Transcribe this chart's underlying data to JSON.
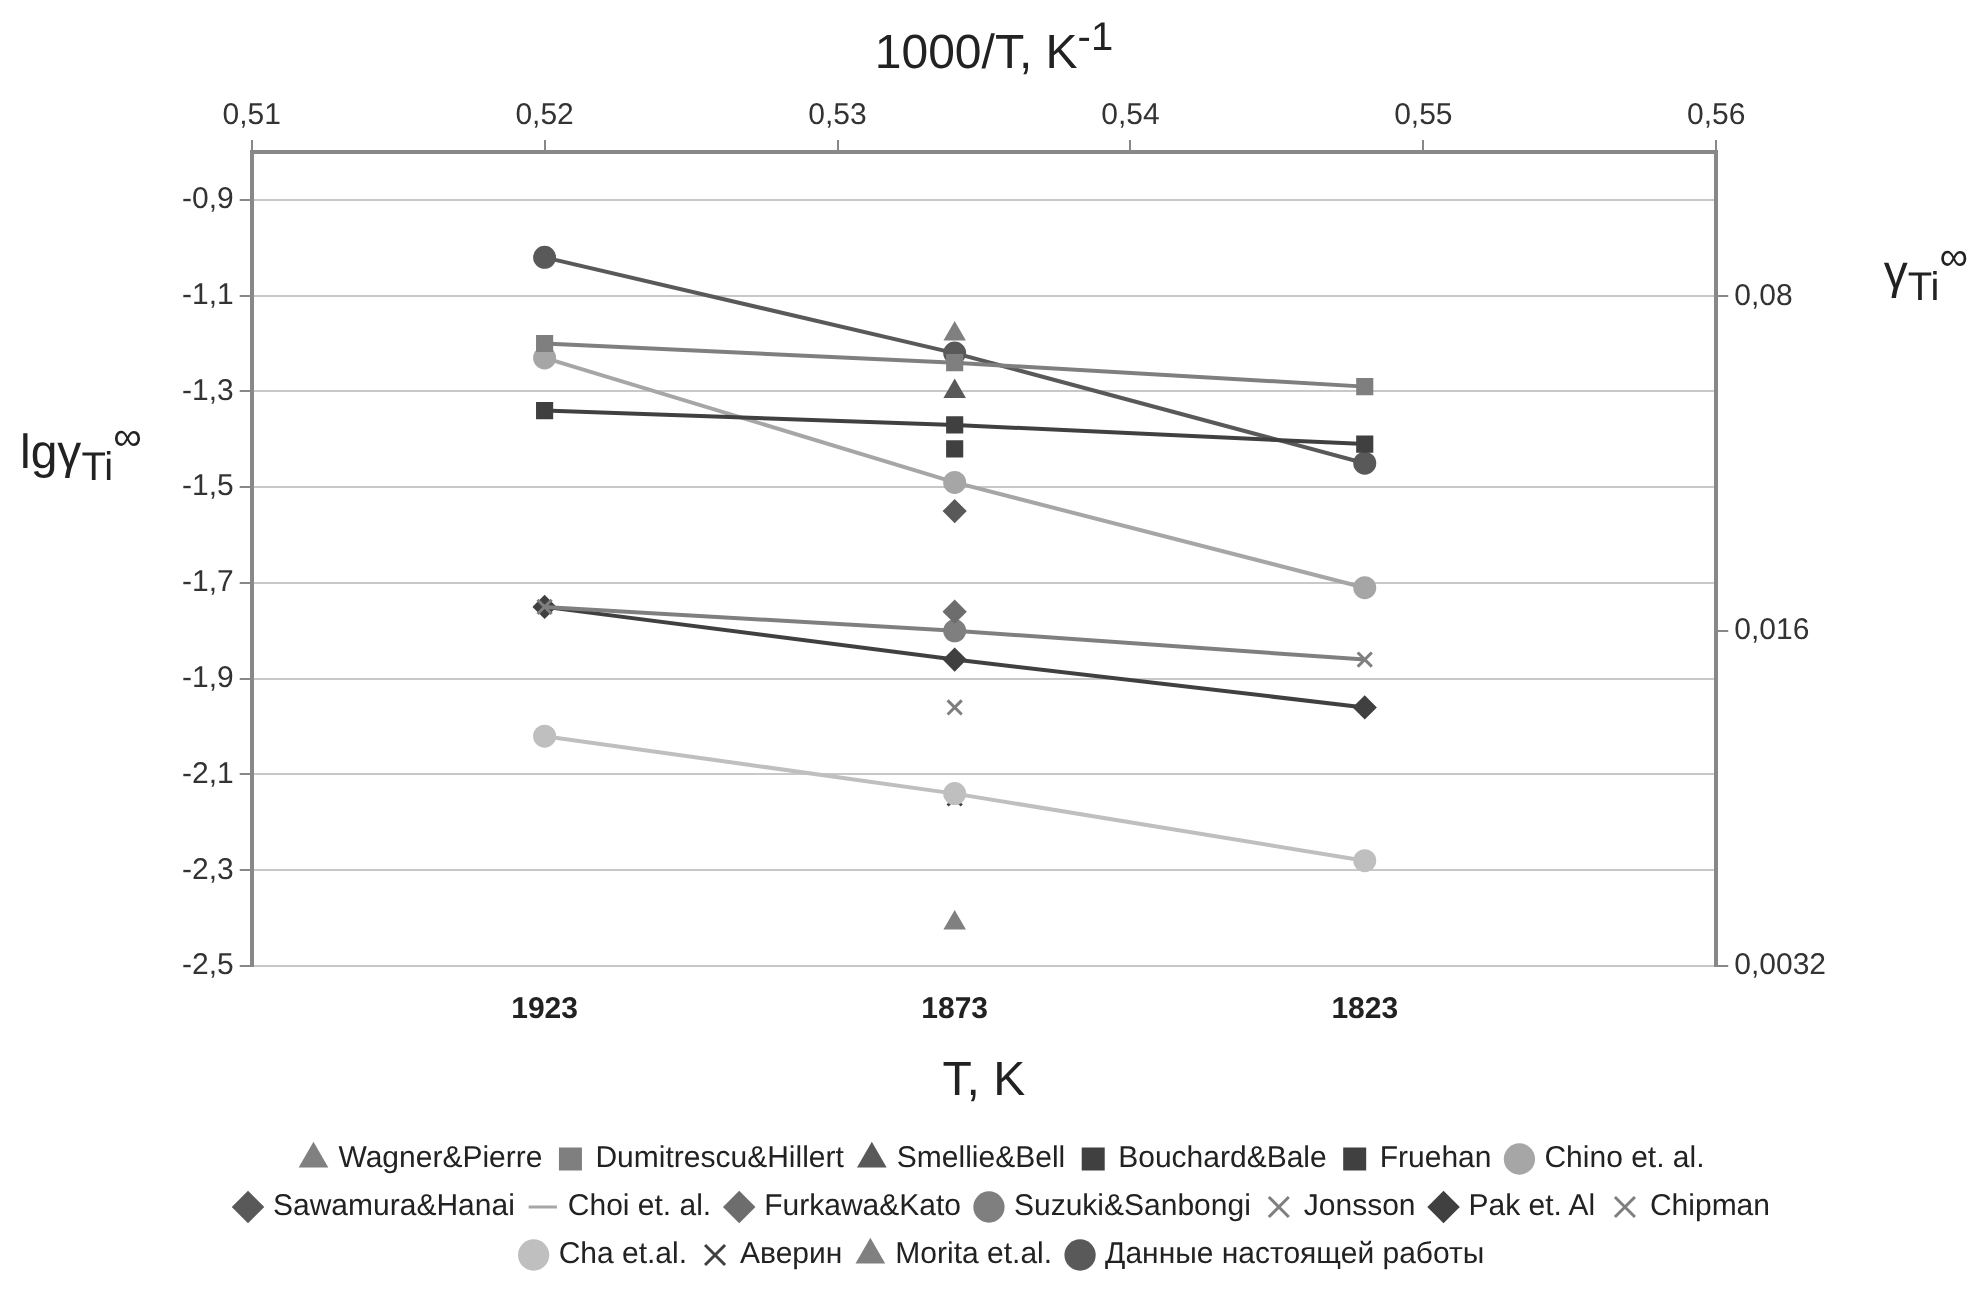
{
  "chart_data": {
    "type": "line",
    "xlabel": "1000/T, K$^{-1}$",
    "ylabel": "lgγ$_{Ti}$$^{∞}$",
    "y2label": "γ$_{Ti}$$^{∞}$",
    "annotations": [
      "1923",
      "1873",
      "1823",
      "T, K"
    ],
    "x": [
      0.52,
      0.534,
      0.548
    ],
    "xlim": [
      0.51,
      0.56
    ],
    "xticks": [
      {
        "value": 0.51,
        "label": "0,51"
      },
      {
        "value": 0.52,
        "label": "0,52"
      },
      {
        "value": 0.53,
        "label": "0,53"
      },
      {
        "value": 0.54,
        "label": "0,54"
      },
      {
        "value": 0.55,
        "label": "0,55"
      },
      {
        "value": 0.56,
        "label": "0,56"
      }
    ],
    "ylim": [
      -2.5,
      -0.8
    ],
    "yticks": [
      {
        "value": -2.5,
        "label": "-2,5"
      },
      {
        "value": -2.3,
        "label": "-2,3"
      },
      {
        "value": -2.1,
        "label": "-2,1"
      },
      {
        "value": -1.9,
        "label": "-1,9"
      },
      {
        "value": -1.7,
        "label": "-1,7"
      },
      {
        "value": -1.5,
        "label": "-1,5"
      },
      {
        "value": -1.3,
        "label": "-1,3"
      },
      {
        "value": -1.1,
        "label": "-1,1"
      },
      {
        "value": -0.9,
        "label": "-0,9"
      }
    ],
    "y2lim": [
      0.0032,
      0.16
    ],
    "y2ticks": [
      {
        "value": 0.0032,
        "label": "0,0032"
      },
      {
        "value": 0.016,
        "label": "0,016"
      },
      {
        "value": 0.08,
        "label": "0,08"
      }
    ],
    "log": "y2",
    "grid": "y",
    "legend": "bottom",
    "series": [
      {
        "name": "Wagner&Pierre",
        "color": "#808080",
        "marker": "triangle",
        "values": [
          null,
          -1.18,
          null
        ]
      },
      {
        "name": "Dumitrescu&Hillert",
        "color": "#7f7f7f",
        "marker": "square",
        "values": [
          -1.2,
          -1.24,
          -1.29
        ]
      },
      {
        "name": "Smellie&Bell",
        "color": "#595959",
        "marker": "triangle",
        "values": [
          null,
          -1.3,
          null
        ]
      },
      {
        "name": "Bouchard&Bale",
        "color": "#404040",
        "marker": "square",
        "values": [
          -1.34,
          -1.37,
          -1.41
        ]
      },
      {
        "name": "Fruehan",
        "color": "#404040",
        "marker": "square",
        "values": [
          null,
          -1.42,
          null
        ]
      },
      {
        "name": "Chino et. al.",
        "color": "#a6a6a6",
        "marker": "circle",
        "values": [
          -1.23,
          -1.49,
          -1.71
        ]
      },
      {
        "name": "Sawamura&Hanai",
        "color": "#595959",
        "marker": "diamond",
        "values": [
          null,
          -1.55,
          null
        ]
      },
      {
        "name": "Choi et. al.",
        "color": "#a6a6a6",
        "marker": "none",
        "values": [
          null,
          null,
          null
        ]
      },
      {
        "name": "Furkawa&Kato",
        "color": "#6d6d6d",
        "marker": "diamond",
        "values": [
          null,
          -1.76,
          null
        ]
      },
      {
        "name": "Suzuki&Sanbongi",
        "color": "#7f7f7f",
        "marker": "circle",
        "values": [
          null,
          -1.8,
          null
        ]
      },
      {
        "name": "Jonsson",
        "color": "#7f7f7f",
        "marker": "cross",
        "values": [
          -1.75,
          -1.8,
          -1.86
        ]
      },
      {
        "name": "Pak et. Al",
        "color": "#404040",
        "marker": "diamond",
        "values": [
          -1.75,
          -1.86,
          -1.96
        ]
      },
      {
        "name": "Chipman",
        "color": "#7f7f7f",
        "marker": "cross",
        "values": [
          null,
          -1.96,
          null
        ]
      },
      {
        "name": "Cha et.al.",
        "color": "#bfbfbf",
        "marker": "circle",
        "values": [
          -2.02,
          -2.14,
          -2.28
        ]
      },
      {
        "name": "Аверин",
        "color": "#404040",
        "marker": "cross",
        "values": [
          null,
          -2.15,
          null
        ]
      },
      {
        "name": "Morita et.al.",
        "color": "#808080",
        "marker": "triangle",
        "values": [
          null,
          -2.41,
          null
        ]
      },
      {
        "name": "Данные настоящей работы",
        "color": "#595959",
        "marker": "circle",
        "values": [
          -1.02,
          -1.22,
          -1.45
        ]
      }
    ]
  }
}
